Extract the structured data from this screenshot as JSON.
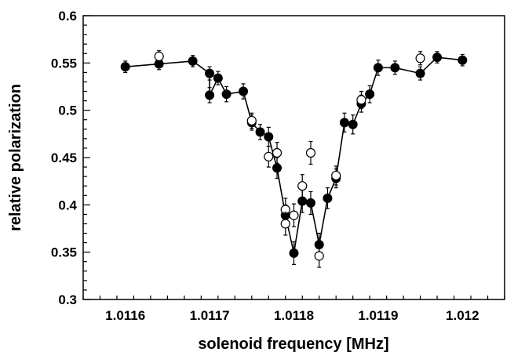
{
  "chart_data": {
    "type": "scatter",
    "title": "",
    "xlabel": "solenoid frequency [MHz]",
    "ylabel": "relative polarization",
    "xlim": [
      1.01155,
      1.01205
    ],
    "ylim": [
      0.3,
      0.6
    ],
    "grid": false,
    "legend": "none",
    "x_ticks": [
      {
        "value": 1.0116,
        "label": "1.0116"
      },
      {
        "value": 1.0117,
        "label": "1.0117"
      },
      {
        "value": 1.0118,
        "label": "1.0118"
      },
      {
        "value": 1.0119,
        "label": "1.0119"
      },
      {
        "value": 1.012,
        "label": "1.012"
      }
    ],
    "y_ticks": [
      {
        "value": 0.3,
        "label": "0.3"
      },
      {
        "value": 0.35,
        "label": "0.35"
      },
      {
        "value": 0.4,
        "label": "0.4"
      },
      {
        "value": 0.45,
        "label": "0.45"
      },
      {
        "value": 0.5,
        "label": "0.5"
      },
      {
        "value": 0.55,
        "label": "0.55"
      },
      {
        "value": 0.6,
        "label": "0.6"
      }
    ],
    "series": [
      {
        "marker": "filled-circle",
        "connected": true,
        "color": "#000000",
        "points": [
          {
            "x": 1.0116,
            "y": 0.546,
            "err": 0.006
          },
          {
            "x": 1.01164,
            "y": 0.549,
            "err": 0.006
          },
          {
            "x": 1.01168,
            "y": 0.552,
            "err": 0.006
          },
          {
            "x": 1.0117,
            "y": 0.539,
            "err": 0.007
          },
          {
            "x": 1.0117,
            "y": 0.516,
            "err": 0.008
          },
          {
            "x": 1.01171,
            "y": 0.534,
            "err": 0.007
          },
          {
            "x": 1.01172,
            "y": 0.517,
            "err": 0.008
          },
          {
            "x": 1.01174,
            "y": 0.52,
            "err": 0.008
          },
          {
            "x": 1.01175,
            "y": 0.487,
            "err": 0.008
          },
          {
            "x": 1.01176,
            "y": 0.477,
            "err": 0.008
          },
          {
            "x": 1.01177,
            "y": 0.472,
            "err": 0.01
          },
          {
            "x": 1.01178,
            "y": 0.439,
            "err": 0.011
          },
          {
            "x": 1.01179,
            "y": 0.389,
            "err": 0.011
          },
          {
            "x": 1.0118,
            "y": 0.349,
            "err": 0.012
          },
          {
            "x": 1.01181,
            "y": 0.404,
            "err": 0.012
          },
          {
            "x": 1.01182,
            "y": 0.402,
            "err": 0.012
          },
          {
            "x": 1.01183,
            "y": 0.358,
            "err": 0.012
          },
          {
            "x": 1.01184,
            "y": 0.407,
            "err": 0.011
          },
          {
            "x": 1.01185,
            "y": 0.428,
            "err": 0.01
          },
          {
            "x": 1.01186,
            "y": 0.487,
            "err": 0.01
          },
          {
            "x": 1.01187,
            "y": 0.485,
            "err": 0.01
          },
          {
            "x": 1.01188,
            "y": 0.507,
            "err": 0.009
          },
          {
            "x": 1.01189,
            "y": 0.517,
            "err": 0.009
          },
          {
            "x": 1.0119,
            "y": 0.545,
            "err": 0.008
          },
          {
            "x": 1.01192,
            "y": 0.545,
            "err": 0.007
          },
          {
            "x": 1.01195,
            "y": 0.539,
            "err": 0.007
          },
          {
            "x": 1.01197,
            "y": 0.556,
            "err": 0.006
          },
          {
            "x": 1.012,
            "y": 0.553,
            "err": 0.006
          }
        ]
      },
      {
        "marker": "open-circle",
        "connected": false,
        "color": "#000000",
        "points": [
          {
            "x": 1.01164,
            "y": 0.557,
            "err": 0.006
          },
          {
            "x": 1.01175,
            "y": 0.489,
            "err": 0.008
          },
          {
            "x": 1.01177,
            "y": 0.451,
            "err": 0.011
          },
          {
            "x": 1.01178,
            "y": 0.455,
            "err": 0.011
          },
          {
            "x": 1.01179,
            "y": 0.395,
            "err": 0.012
          },
          {
            "x": 1.01179,
            "y": 0.38,
            "err": 0.012
          },
          {
            "x": 1.0118,
            "y": 0.389,
            "err": 0.012
          },
          {
            "x": 1.01181,
            "y": 0.42,
            "err": 0.012
          },
          {
            "x": 1.01182,
            "y": 0.455,
            "err": 0.012
          },
          {
            "x": 1.01183,
            "y": 0.346,
            "err": 0.012
          },
          {
            "x": 1.01185,
            "y": 0.431,
            "err": 0.01
          },
          {
            "x": 1.01188,
            "y": 0.511,
            "err": 0.009
          },
          {
            "x": 1.01195,
            "y": 0.555,
            "err": 0.007
          }
        ]
      }
    ]
  }
}
